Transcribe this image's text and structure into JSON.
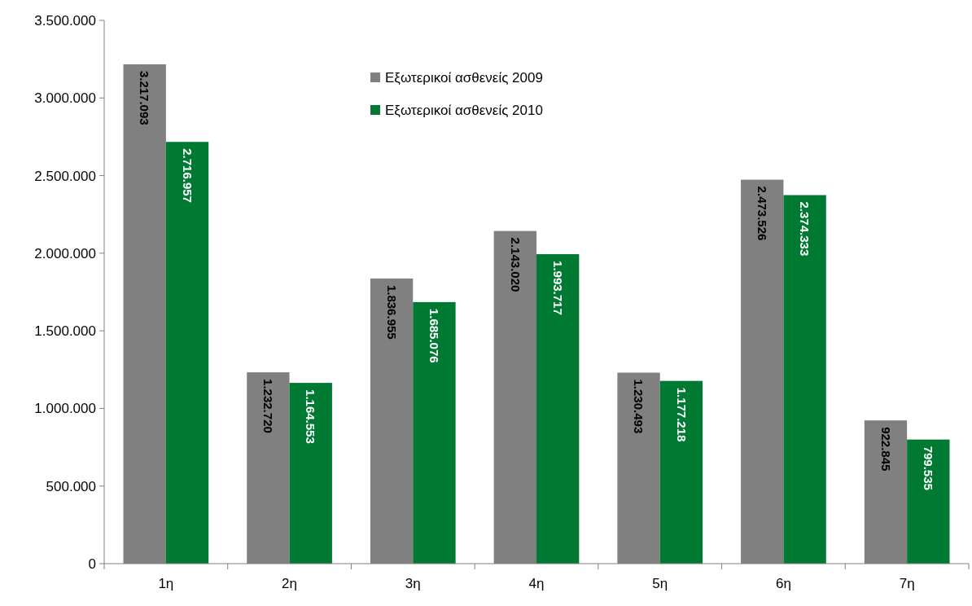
{
  "chart_data": {
    "type": "bar",
    "categories": [
      "1η",
      "2η",
      "3η",
      "4η",
      "5η",
      "6η",
      "7η"
    ],
    "series": [
      {
        "name": "Εξωτερικοί ασθενείς 2009",
        "color": "#808080",
        "values": [
          3217093,
          1232720,
          1836955,
          2143020,
          1230493,
          2473526,
          922845
        ],
        "value_labels": [
          "3.217.093",
          "1.232.720",
          "1.836.955",
          "2.143.020",
          "1.230.493",
          "2.473.526",
          "922.845"
        ]
      },
      {
        "name": "Εξωτερικοί ασθενείς 2010",
        "color": "#007a33",
        "values": [
          2716957,
          1164553,
          1685076,
          1993717,
          1177218,
          2374333,
          799535
        ],
        "value_labels": [
          "2.716.957",
          "1.164.553",
          "1.685.076",
          "1.993.717",
          "1.177.218",
          "2.374.333",
          "799.535"
        ]
      }
    ],
    "ylim": [
      0,
      3500000
    ],
    "yticks": [
      {
        "value": 0,
        "label": "0"
      },
      {
        "value": 500000,
        "label": "500.000"
      },
      {
        "value": 1000000,
        "label": "1.000.000"
      },
      {
        "value": 1500000,
        "label": "1.500.000"
      },
      {
        "value": 2000000,
        "label": "2.000.000"
      },
      {
        "value": 2500000,
        "label": "2.500.000"
      },
      {
        "value": 3000000,
        "label": "3.000.000"
      },
      {
        "value": 3500000,
        "label": "3.500.000"
      }
    ],
    "grid": false,
    "legend": "top"
  }
}
